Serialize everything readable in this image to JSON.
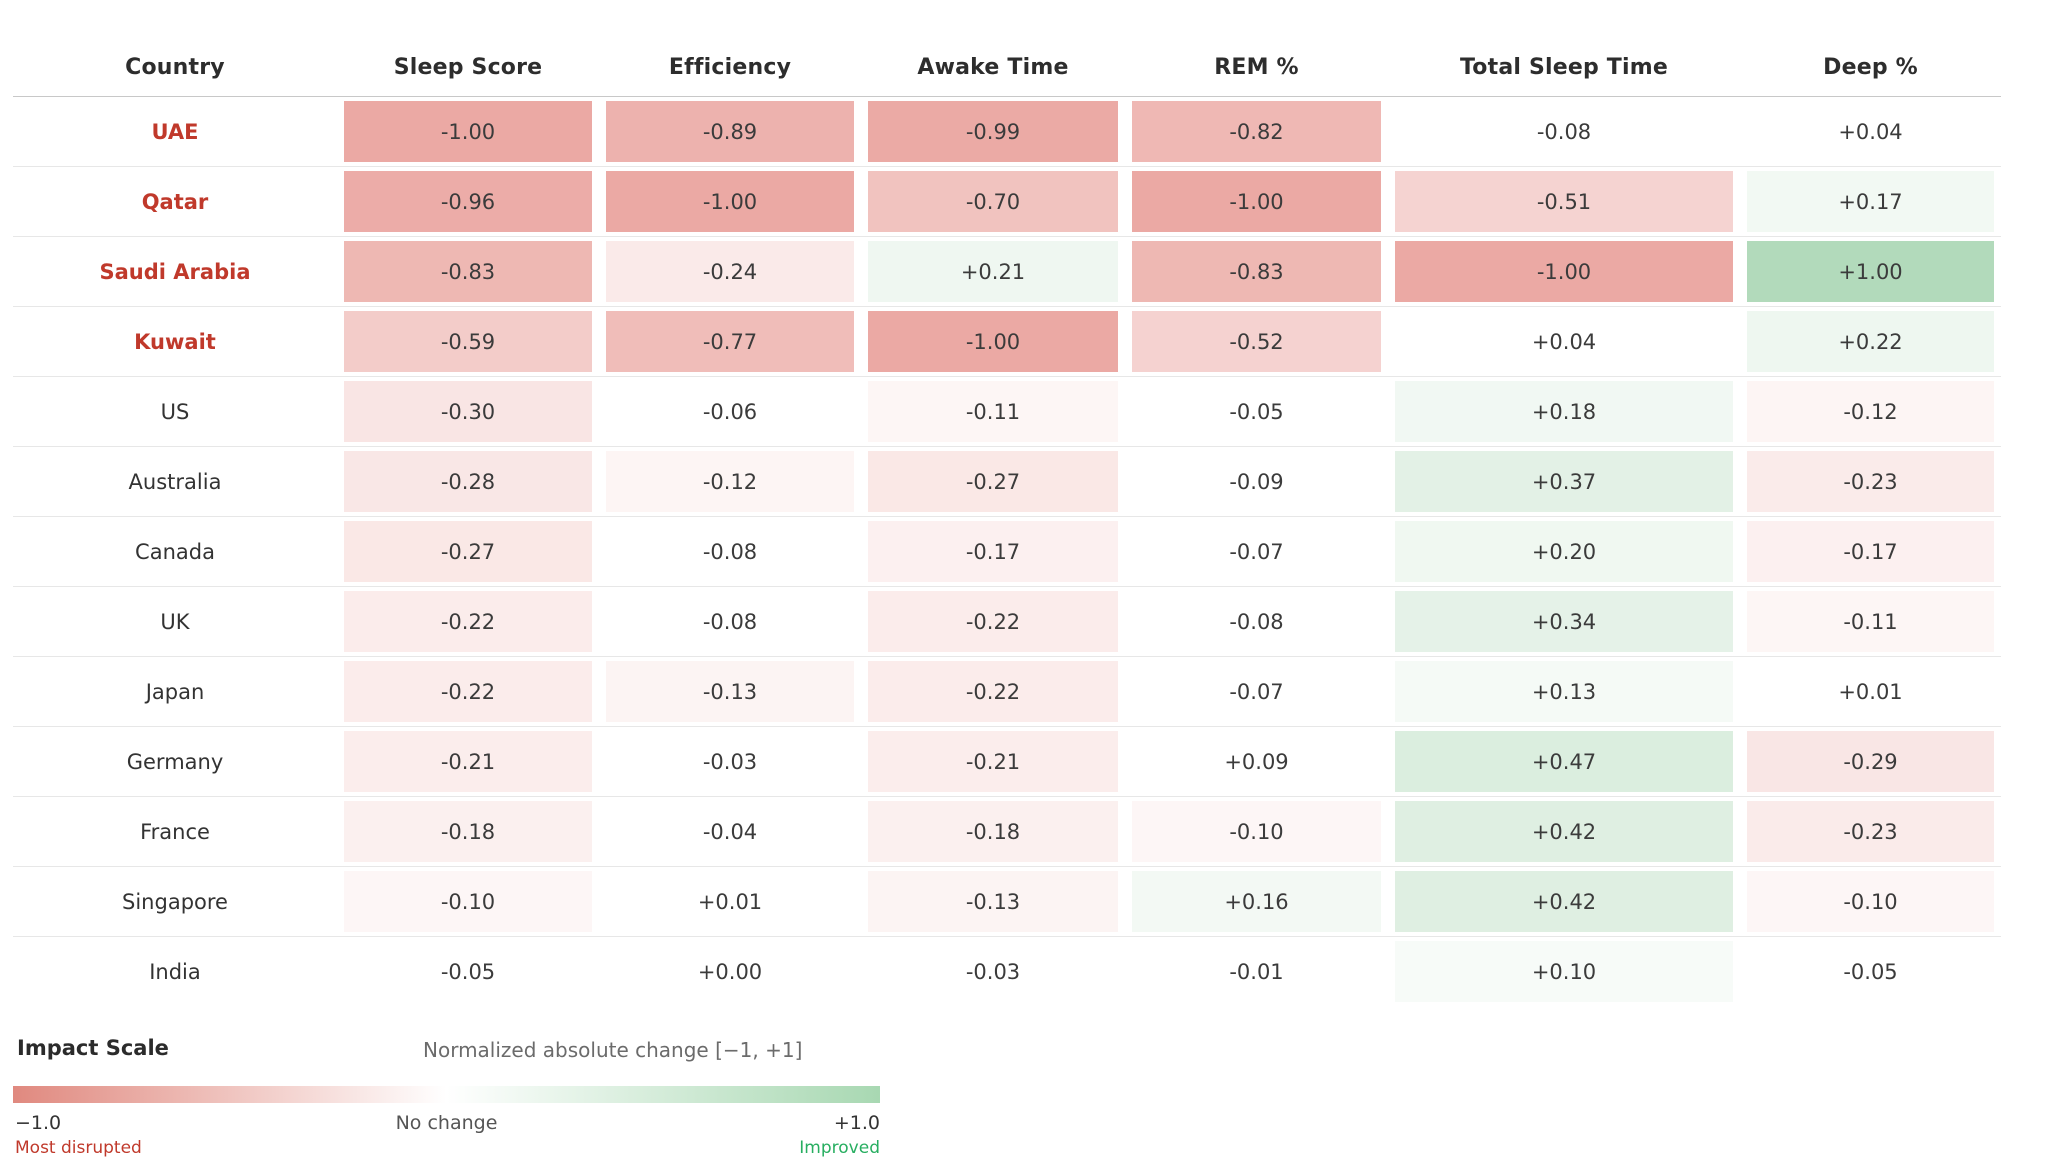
{
  "chart_data": {
    "type": "heatmap",
    "title": "",
    "columns": [
      "Sleep Score",
      "Efficiency",
      "Awake Time",
      "REM %",
      "Total Sleep Time",
      "Deep %"
    ],
    "row_header": "Country",
    "rows": [
      "UAE",
      "Qatar",
      "Saudi Arabia",
      "Kuwait",
      "US",
      "Australia",
      "Canada",
      "UK",
      "Japan",
      "Germany",
      "France",
      "Singapore",
      "India"
    ],
    "highlighted_rows": [
      "UAE",
      "Qatar",
      "Saudi Arabia",
      "Kuwait"
    ],
    "values": [
      [
        -1.0,
        -0.89,
        -0.99,
        -0.82,
        -0.08,
        0.04
      ],
      [
        -0.96,
        -1.0,
        -0.7,
        -1.0,
        -0.51,
        0.17
      ],
      [
        -0.83,
        -0.24,
        0.21,
        -0.83,
        -1.0,
        1.0
      ],
      [
        -0.59,
        -0.77,
        -1.0,
        -0.52,
        0.04,
        0.22
      ],
      [
        -0.3,
        -0.06,
        -0.11,
        -0.05,
        0.18,
        -0.12
      ],
      [
        -0.28,
        -0.12,
        -0.27,
        -0.09,
        0.37,
        -0.23
      ],
      [
        -0.27,
        -0.08,
        -0.17,
        -0.07,
        0.2,
        -0.17
      ],
      [
        -0.22,
        -0.08,
        -0.22,
        -0.08,
        0.34,
        -0.11
      ],
      [
        -0.22,
        -0.13,
        -0.22,
        -0.07,
        0.13,
        0.01
      ],
      [
        -0.21,
        -0.03,
        -0.21,
        0.09,
        0.47,
        -0.29
      ],
      [
        -0.18,
        -0.04,
        -0.18,
        -0.1,
        0.42,
        -0.23
      ],
      [
        -0.1,
        0.01,
        -0.13,
        0.16,
        0.42,
        -0.1
      ],
      [
        -0.05,
        0.0,
        -0.03,
        -0.01,
        0.1,
        -0.05
      ]
    ],
    "value_range": [
      -1,
      1
    ],
    "no_color_threshold": 0.095,
    "legend_position": "bottom-left"
  },
  "legend": {
    "title": "Impact Scale",
    "subtitle": "Normalized absolute change [−1, +1]",
    "min_label": "−1.0",
    "mid_label": "No change",
    "max_label": "+1.0",
    "min_caption": "Most disrupted",
    "max_caption": "Improved"
  },
  "colors": {
    "negative_cell_max": "#eba9a4",
    "positive_cell_max": "#b2dabb",
    "highlight_country_text": "#c0392b",
    "caption_negative": "#c0392b",
    "caption_positive": "#27ae60",
    "bar_left": "#e0897f",
    "bar_mid": "#ffffff",
    "bar_right": "#a8d8b2"
  }
}
